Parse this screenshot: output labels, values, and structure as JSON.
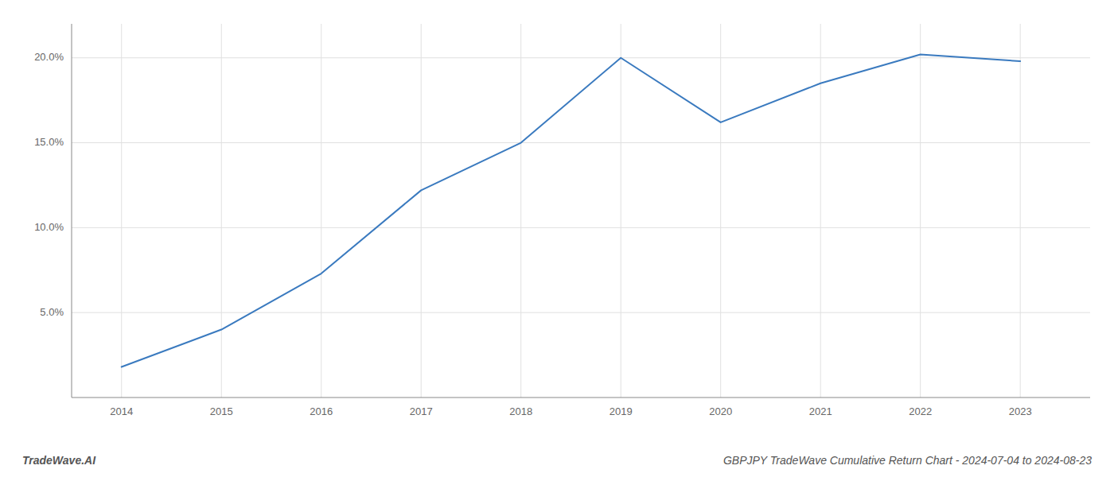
{
  "chart_data": {
    "type": "line",
    "title": "GBPJPY TradeWave Cumulative Return Chart - 2024-07-04 to 2024-08-23",
    "annotations": [
      "TradeWave.AI"
    ],
    "x": [
      2014,
      2015,
      2016,
      2017,
      2018,
      2019,
      2020,
      2021,
      2022,
      2023
    ],
    "values": [
      1.8,
      4.0,
      7.3,
      12.2,
      15.0,
      20.0,
      16.2,
      18.5,
      20.2,
      19.8
    ],
    "color": "#3a7abf",
    "xlim": [
      2013.5,
      2023.7
    ],
    "xticks": [
      2014,
      2015,
      2016,
      2017,
      2018,
      2019,
      2020,
      2021,
      2022,
      2023
    ],
    "ylim": [
      0,
      22
    ],
    "yticks": [
      {
        "value": 5.0,
        "label": "5.0%"
      },
      {
        "value": 10.0,
        "label": "10.0%"
      },
      {
        "value": 15.0,
        "label": "15.0%"
      },
      {
        "value": 20.0,
        "label": "20.0%"
      }
    ],
    "grid": true
  }
}
